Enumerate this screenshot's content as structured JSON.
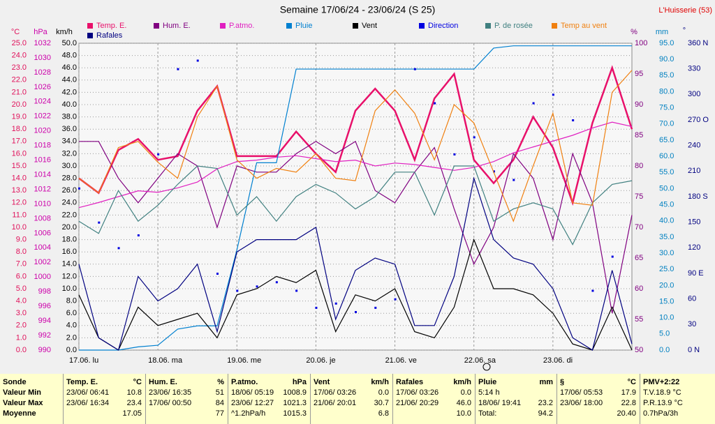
{
  "chart_data": {
    "type": "line",
    "title": "Semaine 17/06/24 - 23/06/24 (S 25)",
    "station": "L'Huisserie (53)",
    "categories": [
      "17.06. lu",
      null,
      null,
      null,
      "18.06. ma",
      null,
      null,
      null,
      "19.06. me",
      null,
      null,
      null,
      "20.06. je",
      null,
      null,
      null,
      "21.06. ve",
      null,
      null,
      null,
      "22.06. sa",
      null,
      null,
      null,
      "23.06. di",
      null,
      null,
      null,
      null
    ],
    "grid": true,
    "axes": {
      "temp": {
        "unit": "°C",
        "color": "#e0105a",
        "lim": [
          0,
          25
        ],
        "ticks": [
          {
            "value": 0,
            "label": "0.0"
          },
          {
            "value": 1,
            "label": "1.0"
          },
          {
            "value": 2,
            "label": "2.0"
          },
          {
            "value": 3,
            "label": "3.0"
          },
          {
            "value": 4,
            "label": "4.0"
          },
          {
            "value": 5,
            "label": "5.0"
          },
          {
            "value": 6,
            "label": "6.0"
          },
          {
            "value": 7,
            "label": "7.0"
          },
          {
            "value": 8,
            "label": "8.0"
          },
          {
            "value": 9,
            "label": "9.0"
          },
          {
            "value": 10,
            "label": "10.0"
          },
          {
            "value": 11,
            "label": "11.0"
          },
          {
            "value": 12,
            "label": "12.0"
          },
          {
            "value": 13,
            "label": "13.0"
          },
          {
            "value": 14,
            "label": "14.0"
          },
          {
            "value": 15,
            "label": "15.0"
          },
          {
            "value": 16,
            "label": "16.0"
          },
          {
            "value": 17,
            "label": "17.0"
          },
          {
            "value": 18,
            "label": "18.0"
          },
          {
            "value": 19,
            "label": "19.0"
          },
          {
            "value": 20,
            "label": "20.0"
          },
          {
            "value": 21,
            "label": "21.0"
          },
          {
            "value": 22,
            "label": "22.0"
          },
          {
            "value": 23,
            "label": "23.0"
          },
          {
            "value": 24,
            "label": "24.0"
          },
          {
            "value": 25,
            "label": "25.0"
          }
        ]
      },
      "hpa": {
        "unit": "hPa",
        "color": "#cc00aa",
        "lim": [
          990,
          1032
        ],
        "ticks": [
          990,
          992,
          994,
          996,
          998,
          1000,
          1002,
          1004,
          1006,
          1008,
          1010,
          1012,
          1014,
          1016,
          1018,
          1020,
          1022,
          1024,
          1026,
          1028,
          1030,
          1032
        ]
      },
      "kmh": {
        "unit": "km/h",
        "color": "#000000",
        "lim": [
          0,
          50
        ],
        "ticks": [
          {
            "value": 0,
            "label": "0.0"
          },
          {
            "value": 2,
            "label": "2.0"
          },
          {
            "value": 4,
            "label": "4.0"
          },
          {
            "value": 6,
            "label": "6.0"
          },
          {
            "value": 8,
            "label": "8.0"
          },
          {
            "value": 10,
            "label": "10.0"
          },
          {
            "value": 12,
            "label": "12.0"
          },
          {
            "value": 14,
            "label": "14.0"
          },
          {
            "value": 16,
            "label": "16.0"
          },
          {
            "value": 18,
            "label": "18.0"
          },
          {
            "value": 20,
            "label": "20.0"
          },
          {
            "value": 22,
            "label": "22.0"
          },
          {
            "value": 24,
            "label": "24.0"
          },
          {
            "value": 26,
            "label": "26.0"
          },
          {
            "value": 28,
            "label": "28.0"
          },
          {
            "value": 30,
            "label": "30.0"
          },
          {
            "value": 32,
            "label": "32.0"
          },
          {
            "value": 34,
            "label": "34.0"
          },
          {
            "value": 36,
            "label": "36.0"
          },
          {
            "value": 38,
            "label": "38.0"
          },
          {
            "value": 40,
            "label": "40.0"
          },
          {
            "value": 42,
            "label": "42.0"
          },
          {
            "value": 44,
            "label": "44.0"
          },
          {
            "value": 46,
            "label": "46.0"
          },
          {
            "value": 48,
            "label": "48.0"
          },
          {
            "value": 50,
            "label": "50.0"
          }
        ]
      },
      "pct": {
        "unit": "%",
        "color": "#800080",
        "lim": [
          50,
          100
        ],
        "ticks": [
          50,
          55,
          60,
          65,
          70,
          75,
          80,
          85,
          90,
          95,
          100
        ]
      },
      "mm": {
        "unit": "mm",
        "color": "#0080c0",
        "lim": [
          0,
          95
        ],
        "ticks": [
          {
            "value": 0,
            "label": "0.0"
          },
          {
            "value": 5,
            "label": "5.0"
          },
          {
            "value": 10,
            "label": "10.0"
          },
          {
            "value": 15,
            "label": "15.0"
          },
          {
            "value": 20,
            "label": "20.0"
          },
          {
            "value": 25,
            "label": "25.0"
          },
          {
            "value": 30,
            "label": "30.0"
          },
          {
            "value": 35,
            "label": "35.0"
          },
          {
            "value": 40,
            "label": "40.0"
          },
          {
            "value": 45,
            "label": "45.0"
          },
          {
            "value": 50,
            "label": "50.0"
          },
          {
            "value": 55,
            "label": "55.0"
          },
          {
            "value": 60,
            "label": "60.0"
          },
          {
            "value": 65,
            "label": "65.0"
          },
          {
            "value": 70,
            "label": "70.0"
          },
          {
            "value": 75,
            "label": "75.0"
          },
          {
            "value": 80,
            "label": "80.0"
          },
          {
            "value": 85,
            "label": "85.0"
          },
          {
            "value": 90,
            "label": "90.0"
          },
          {
            "value": 95,
            "label": "95.0"
          }
        ]
      },
      "deg": {
        "unit": "°",
        "color": "#000080",
        "lim": [
          0,
          360
        ],
        "ticks": [
          {
            "value": 0,
            "label": "0 N"
          },
          30,
          60,
          {
            "value": 90,
            "label": "90 E"
          },
          120,
          150,
          {
            "value": 180,
            "label": "180 S"
          },
          210,
          240,
          {
            "value": 270,
            "label": "270 O"
          },
          300,
          330,
          {
            "value": 360,
            "label": "360 N"
          }
        ]
      }
    },
    "series": [
      {
        "name": "Temp. E.",
        "color": "#e8106a",
        "axis": "temp",
        "values": [
          14.0,
          12.8,
          16.3,
          17.2,
          15.5,
          15.8,
          19.5,
          21.5,
          15.8,
          15.8,
          15.8,
          17.8,
          16.0,
          14.5,
          19.5,
          21.3,
          19.5,
          15.5,
          20.5,
          22.5,
          15.5,
          13.6,
          15.5,
          19.0,
          16.5,
          12.0,
          18.5,
          23.0,
          18.0
        ]
      },
      {
        "name": "Hum. E.",
        "color": "#800080",
        "axis": "pct",
        "values": [
          84,
          84,
          78,
          74,
          78,
          82,
          80,
          70,
          80,
          79,
          79,
          82,
          84,
          82,
          84,
          76,
          74,
          79,
          83,
          73,
          64,
          70,
          82,
          78,
          68,
          82,
          74,
          56,
          72
        ]
      },
      {
        "name": "P.atmo.",
        "color": "#e020c0",
        "axis": "hpa",
        "values": [
          1009.5,
          1010.2,
          1011.0,
          1011.8,
          1011.6,
          1012.2,
          1013.0,
          1014.8,
          1015.8,
          1016.0,
          1016.4,
          1016.6,
          1016.2,
          1015.8,
          1016.0,
          1015.2,
          1015.6,
          1015.4,
          1015.0,
          1014.6,
          1015.0,
          1015.8,
          1017.0,
          1017.8,
          1018.6,
          1019.4,
          1020.4,
          1021.2,
          1020.6
        ]
      },
      {
        "name": "Pluie",
        "color": "#0080d0",
        "axis": "mm",
        "values": [
          0,
          0,
          0,
          1,
          1.5,
          6.5,
          7.5,
          7.5,
          31,
          58,
          58,
          87,
          87,
          87,
          87,
          87,
          87,
          87,
          87,
          87,
          87,
          93.5,
          94.2,
          94.2,
          94.2,
          94.2,
          94.2,
          94.2,
          94.2
        ]
      },
      {
        "name": "Vent",
        "color": "#000000",
        "axis": "kmh",
        "values": [
          9,
          2,
          0,
          7,
          4,
          5,
          6,
          2,
          9,
          10,
          12,
          11,
          13,
          3,
          9,
          8,
          10,
          3,
          2,
          7,
          18,
          10,
          10,
          9,
          6,
          1,
          0,
          7,
          0
        ]
      },
      {
        "name": "Direction",
        "color": "#0000e0",
        "axis": "deg",
        "style": "dots",
        "values": [
          190,
          150,
          120,
          135,
          230,
          330,
          340,
          90,
          70,
          75,
          80,
          70,
          50,
          55,
          45,
          50,
          60,
          330,
          290,
          230,
          250,
          210,
          200,
          290,
          300,
          270,
          70,
          110,
          null
        ]
      },
      {
        "name": "P. de rosée",
        "color": "#408080",
        "axis": "temp",
        "values": [
          10.5,
          9.5,
          13.0,
          10.5,
          11.8,
          13.5,
          15.0,
          14.8,
          11.0,
          12.5,
          10.5,
          12.5,
          13.5,
          12.8,
          11.5,
          12.5,
          14.5,
          14.5,
          11.0,
          15.0,
          15.0,
          10.5,
          11.5,
          12.0,
          11.5,
          8.6,
          12.0,
          13.5,
          13.8
        ]
      },
      {
        "name": "Temp au vent",
        "color": "#f08010",
        "axis": "temp",
        "values": [
          14.0,
          12.8,
          16.5,
          17.0,
          15.3,
          14.0,
          19.0,
          21.5,
          15.5,
          14.0,
          14.8,
          14.5,
          16.0,
          14.0,
          13.8,
          19.5,
          21.2,
          19.3,
          15.5,
          20.0,
          18.5,
          14.5,
          10.5,
          15.0,
          19.3,
          12.0,
          11.8,
          21.0,
          22.8
        ]
      },
      {
        "name": "Rafales",
        "color": "#000080",
        "axis": "kmh",
        "values": [
          14,
          2,
          0,
          12,
          8,
          10,
          14,
          3,
          16,
          18,
          18,
          18,
          20,
          5,
          13,
          15,
          14,
          4,
          4,
          12,
          28,
          18,
          15,
          14,
          10,
          2,
          0,
          13,
          1
        ]
      }
    ]
  },
  "summary": {
    "columns": [
      {
        "header": "Sonde",
        "rows": [
          {
            "label": "Valeur Min"
          },
          {
            "label": "Valeur Max"
          },
          {
            "label": "Moyenne"
          }
        ]
      },
      {
        "header": "Temp. E.",
        "unit": "°C",
        "rows": [
          {
            "label": "23/06/ 06:41",
            "value": "10.8"
          },
          {
            "label": "23/06/ 16:34",
            "value": "23.4"
          },
          {
            "value": "17.05"
          }
        ]
      },
      {
        "header": "Hum. E.",
        "unit": "%",
        "rows": [
          {
            "label": "23/06/ 16:35",
            "value": "51"
          },
          {
            "label": "17/06/ 00:50",
            "value": "84"
          },
          {
            "value": "77"
          }
        ]
      },
      {
        "header": "P.atmo.",
        "unit": "hPa",
        "rows": [
          {
            "label": "18/06/ 05:19",
            "value": "1008.9"
          },
          {
            "label": "23/06/ 12:27",
            "value": "1021.3"
          },
          {
            "label": "^1.2hPa/h",
            "value": "1015.3"
          }
        ]
      },
      {
        "header": "Vent",
        "unit": "km/h",
        "rows": [
          {
            "label": "17/06/ 03:26",
            "value": "0.0"
          },
          {
            "label": "21/06/ 20:01",
            "value": "30.7"
          },
          {
            "value": "6.8"
          }
        ]
      },
      {
        "header": "Rafales",
        "unit": "km/h",
        "rows": [
          {
            "label": "17/06/ 03:26",
            "value": "0.0"
          },
          {
            "label": "21/06/ 20:29",
            "value": "46.0"
          },
          {
            "value": "10.0"
          }
        ]
      },
      {
        "header": "Pluie",
        "unit": "mm",
        "rows": [
          {
            "label": "5:14 h"
          },
          {
            "label": "18/06/ 19:41",
            "value": "23.2"
          },
          {
            "label": "Total:",
            "value": "94.2"
          }
        ]
      },
      {
        "header": "§",
        "unit": "°C",
        "rows": [
          {
            "label": "17/06/ 05:53",
            "value": "17.9"
          },
          {
            "label": "23/06/ 18:00",
            "value": "22.8"
          },
          {
            "value": "20.40"
          }
        ]
      },
      {
        "header": "PMV+2:22",
        "rows": [
          {
            "label": "T.V.18.9 °C"
          },
          {
            "label": "P.R.13.9 °C"
          },
          {
            "label": "0.7hPa/3h"
          }
        ]
      }
    ]
  }
}
